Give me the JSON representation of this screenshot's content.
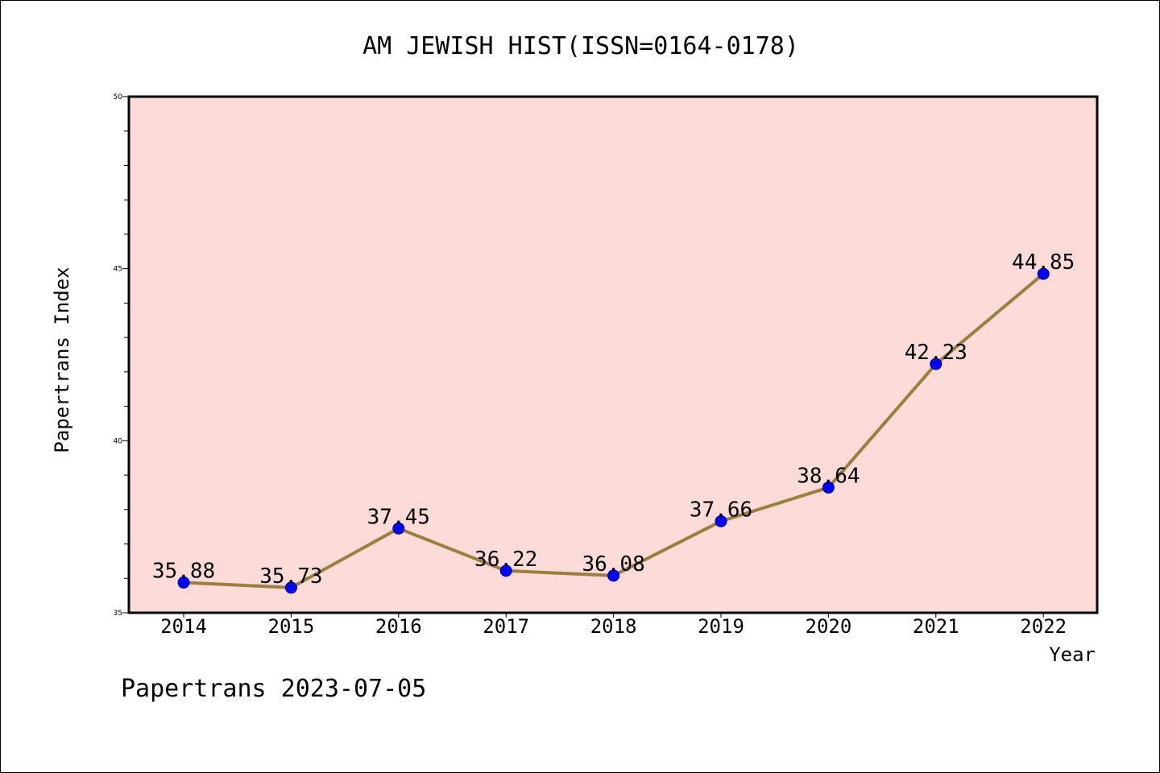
{
  "colors": {
    "plot_background": "#fddbd8",
    "line": "#9c7f3c",
    "marker_fill": "#0000ff",
    "marker_stroke": "#00008b",
    "axis": "#000000"
  },
  "footer": "Papertrans 2023-07-05",
  "chart_data": {
    "type": "line",
    "title": "AM JEWISH HIST(ISSN=0164-0178)",
    "xlabel": "Year",
    "ylabel": "Papertrans Index",
    "categories": [
      "2014",
      "2015",
      "2016",
      "2017",
      "2018",
      "2019",
      "2020",
      "2021",
      "2022"
    ],
    "values": [
      35.88,
      35.73,
      37.45,
      36.22,
      36.08,
      37.66,
      38.64,
      42.23,
      44.85
    ],
    "data_labels": [
      "35.88",
      "35.73",
      "37.45",
      "36.22",
      "36.08",
      "37.66",
      "38.64",
      "42.23",
      "44.85"
    ],
    "ylim": [
      35,
      50
    ],
    "yticks": [
      35,
      40,
      45,
      50
    ],
    "ytick_labels": [
      "35",
      "40",
      "45",
      "50"
    ],
    "y_minor_step": 1,
    "grid": false,
    "legend": "none"
  }
}
